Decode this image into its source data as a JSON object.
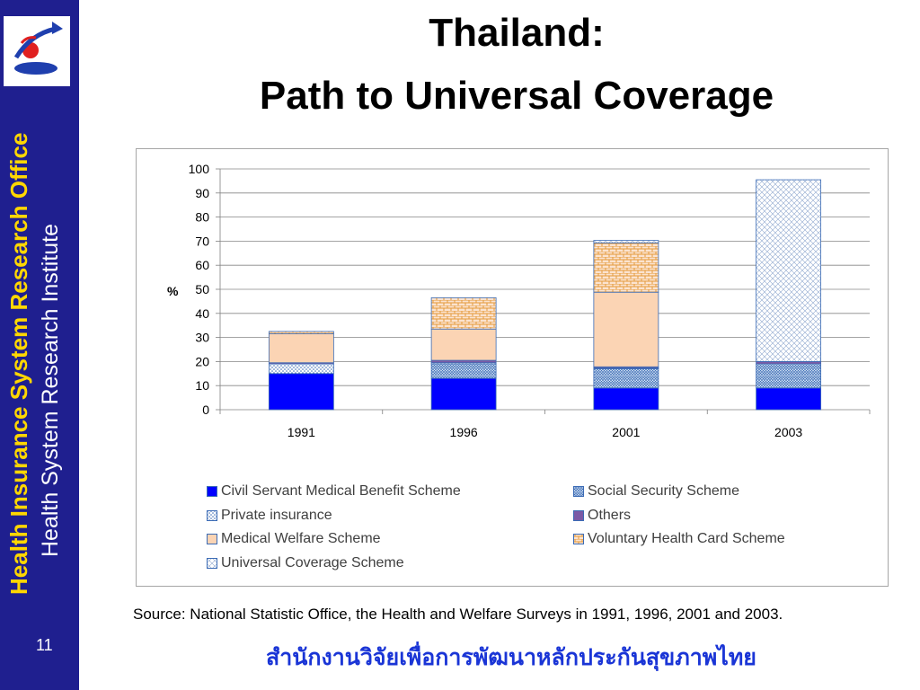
{
  "sidebar": {
    "logo_icon": "health-insurance-logo-icon",
    "org_name_1": "Health Insurance System Research Office",
    "org_name_2": "Health System Research Institute",
    "slide_number": "11"
  },
  "header": {
    "title_line1": "Thailand:",
    "title_line2": "Path to Universal Coverage"
  },
  "colors": {
    "sidebar_bg": "#1f1f8f",
    "org_name_1": "#ffd700",
    "thai_text": "#1a35d6"
  },
  "chart_data": {
    "type": "bar",
    "stacked": true,
    "categories": [
      "1991",
      "1996",
      "2001",
      "2003"
    ],
    "ylabel": "%",
    "ylim": [
      0,
      100
    ],
    "yticks": [
      0,
      10,
      20,
      30,
      40,
      50,
      60,
      70,
      80,
      90,
      100
    ],
    "grid": true,
    "legend_position": "bottom",
    "series": [
      {
        "name": "Civil Servant Medical Benefit Scheme",
        "values": [
          15,
          13,
          9,
          9
        ],
        "color": "#0000ff",
        "pattern": "solid"
      },
      {
        "name": "Social Security Scheme",
        "values": [
          0,
          6,
          8,
          10
        ],
        "color": "#c6dbef",
        "pattern": "zigzag"
      },
      {
        "name": "Private insurance",
        "values": [
          4,
          0.5,
          0.3,
          0
        ],
        "color": "#ffffff",
        "pattern": "dots"
      },
      {
        "name": "Others",
        "values": [
          0.5,
          1,
          0.5,
          1
        ],
        "color": "#7b5aa6",
        "pattern": "solid"
      },
      {
        "name": "Medical Welfare Scheme",
        "values": [
          12,
          13,
          31,
          0
        ],
        "color": "#fbd4b4",
        "pattern": "solid"
      },
      {
        "name": "Voluntary Health Card Scheme",
        "values": [
          1,
          13,
          20.5,
          0
        ],
        "color": "#fde9d9",
        "pattern": "brick"
      },
      {
        "name": "Universal Coverage Scheme",
        "values": [
          0,
          0,
          1,
          75.5
        ],
        "color": "#ffffff",
        "pattern": "crosshatch"
      }
    ]
  },
  "footer": {
    "source": "Source: National Statistic Office, the Health and Welfare Surveys in 1991, 1996, 2001 and 2003.",
    "thai_org": "สำนักงานวิจัยเพื่อการพัฒนาหลักประกันสุขภาพไทย"
  }
}
